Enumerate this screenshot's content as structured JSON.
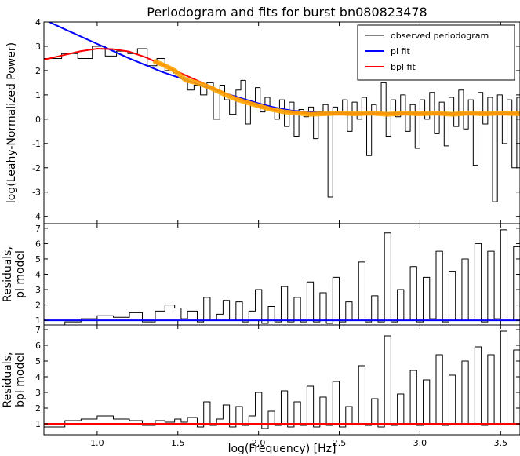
{
  "figure": {
    "title": "Periodogram and fits for burst bn080823478"
  },
  "chart_data": [
    {
      "type": "line",
      "panel": "periodogram",
      "title": "Periodogram and fits for burst bn080823478",
      "ylabel": "log(Leahy-Normalized Power)",
      "xlim": [
        0.67,
        3.62
      ],
      "ylim": [
        -4.3,
        4
      ],
      "yticks": [
        -4,
        -3,
        -2,
        -1,
        0,
        1,
        2,
        3,
        4
      ],
      "legend_position": "top-right",
      "legend": [
        {
          "label": "observed periodogram",
          "color": "#000000"
        },
        {
          "label": "pl fit",
          "color": "#0000ff"
        },
        {
          "label": "bpl fit",
          "color": "#ff0000"
        }
      ],
      "series": [
        {
          "name": "observed periodogram",
          "color": "#000000",
          "style": "steps",
          "x": [
            0.67,
            0.78,
            0.88,
            0.97,
            1.05,
            1.12,
            1.19,
            1.25,
            1.31,
            1.37,
            1.42,
            1.47,
            1.52,
            1.56,
            1.6,
            1.64,
            1.68,
            1.72,
            1.76,
            1.79,
            1.82,
            1.86,
            1.89,
            1.92,
            1.95,
            1.98,
            2.01,
            2.04,
            2.07,
            2.1,
            2.13,
            2.16,
            2.19,
            2.22,
            2.25,
            2.28,
            2.31,
            2.34,
            2.37,
            2.4,
            2.43,
            2.46,
            2.49,
            2.52,
            2.55,
            2.58,
            2.61,
            2.64,
            2.67,
            2.7,
            2.73,
            2.76,
            2.79,
            2.82,
            2.85,
            2.88,
            2.91,
            2.94,
            2.97,
            3.0,
            3.03,
            3.06,
            3.09,
            3.12,
            3.15,
            3.18,
            3.21,
            3.24,
            3.27,
            3.3,
            3.33,
            3.36,
            3.39,
            3.42,
            3.45,
            3.48,
            3.51,
            3.54,
            3.57,
            3.6,
            3.62
          ],
          "y": [
            2.5,
            2.7,
            2.5,
            3.0,
            2.6,
            2.8,
            2.7,
            2.9,
            2.2,
            2.5,
            2.0,
            1.9,
            1.7,
            1.2,
            1.4,
            1.0,
            1.5,
            0.0,
            1.4,
            0.8,
            0.2,
            1.2,
            1.6,
            -0.2,
            0.7,
            1.3,
            0.3,
            0.9,
            0.5,
            0.0,
            0.8,
            -0.3,
            0.7,
            -0.7,
            0.4,
            0.1,
            0.5,
            -0.8,
            0.3,
            0.6,
            -3.2,
            0.5,
            0.2,
            0.8,
            -0.5,
            0.7,
            0.0,
            0.9,
            -1.5,
            0.6,
            0.2,
            1.5,
            -0.7,
            0.8,
            0.1,
            1.0,
            -0.5,
            0.6,
            -1.2,
            0.8,
            0.0,
            1.1,
            -0.6,
            0.7,
            -1.1,
            0.9,
            -0.3,
            1.2,
            -0.4,
            0.8,
            -1.9,
            1.1,
            -0.2,
            0.9,
            -3.4,
            1.0,
            -1.0,
            0.8,
            -2.0,
            0.9,
            0.4
          ]
        },
        {
          "name": "pl fit",
          "color": "#0000ff",
          "x": [
            0.67,
            0.8,
            1.0,
            1.2,
            1.4,
            1.6,
            1.8,
            1.9,
            2.0,
            2.1,
            2.2,
            2.3,
            2.4,
            2.6,
            2.8,
            3.0,
            3.2,
            3.4,
            3.62
          ],
          "y": [
            4.1,
            3.7,
            3.1,
            2.5,
            1.95,
            1.5,
            1.05,
            0.85,
            0.65,
            0.48,
            0.36,
            0.3,
            0.27,
            0.25,
            0.25,
            0.25,
            0.25,
            0.25,
            0.25
          ]
        },
        {
          "name": "bpl fit",
          "color": "#ff0000",
          "x": [
            0.67,
            0.8,
            0.9,
            1.0,
            1.1,
            1.2,
            1.3,
            1.4,
            1.5,
            1.6,
            1.7,
            1.8,
            1.9,
            2.0,
            2.1,
            2.2,
            2.3,
            2.4,
            2.6,
            2.8,
            3.0,
            3.2,
            3.4,
            3.62
          ],
          "y": [
            2.45,
            2.65,
            2.8,
            2.9,
            2.88,
            2.78,
            2.55,
            2.25,
            1.95,
            1.65,
            1.35,
            1.05,
            0.78,
            0.55,
            0.38,
            0.28,
            0.24,
            0.22,
            0.22,
            0.22,
            0.22,
            0.22,
            0.22,
            0.22
          ]
        },
        {
          "name": "",
          "color": "#ffa500",
          "style": "band",
          "x": [
            1.35,
            1.42,
            1.48,
            1.55,
            1.62,
            1.7,
            1.78,
            1.85,
            1.92,
            2.0,
            2.08,
            2.16,
            2.24,
            2.32,
            2.4,
            2.5,
            2.6,
            2.7,
            2.8,
            2.9,
            3.0,
            3.1,
            3.2,
            3.3,
            3.4,
            3.5,
            3.62
          ],
          "y": [
            2.4,
            2.2,
            2.0,
            1.6,
            1.5,
            1.3,
            1.05,
            0.85,
            0.7,
            0.55,
            0.4,
            0.3,
            0.25,
            0.2,
            0.22,
            0.25,
            0.22,
            0.25,
            0.2,
            0.25,
            0.22,
            0.25,
            0.2,
            0.25,
            0.22,
            0.25,
            0.22
          ]
        }
      ]
    },
    {
      "type": "line",
      "panel": "residuals-pl",
      "ylabel": "Residuals,\npl model",
      "xlim": [
        0.67,
        3.62
      ],
      "ylim": [
        0.7,
        7.3
      ],
      "yticks": [
        1,
        2,
        3,
        4,
        5,
        6,
        7
      ],
      "series": [
        {
          "name": "",
          "color": "#000000",
          "style": "steps",
          "x": [
            0.67,
            0.8,
            0.9,
            1.0,
            1.1,
            1.2,
            1.28,
            1.36,
            1.42,
            1.48,
            1.52,
            1.56,
            1.62,
            1.66,
            1.7,
            1.74,
            1.78,
            1.82,
            1.86,
            1.9,
            1.94,
            1.98,
            2.02,
            2.06,
            2.1,
            2.14,
            2.18,
            2.22,
            2.26,
            2.3,
            2.34,
            2.38,
            2.42,
            2.46,
            2.5,
            2.54,
            2.58,
            2.62,
            2.66,
            2.7,
            2.74,
            2.78,
            2.82,
            2.86,
            2.9,
            2.94,
            2.98,
            3.02,
            3.06,
            3.1,
            3.14,
            3.18,
            3.22,
            3.26,
            3.3,
            3.34,
            3.38,
            3.42,
            3.46,
            3.5,
            3.54,
            3.58,
            3.62
          ],
          "y": [
            0.7,
            0.9,
            1.1,
            1.3,
            1.2,
            1.5,
            0.9,
            1.6,
            2.0,
            1.8,
            1.1,
            1.6,
            0.9,
            2.5,
            1.0,
            1.4,
            2.3,
            1.0,
            2.2,
            0.9,
            1.6,
            3.0,
            0.8,
            1.9,
            0.9,
            3.2,
            0.9,
            2.5,
            0.9,
            3.5,
            0.9,
            2.8,
            0.8,
            3.8,
            0.9,
            2.2,
            1.0,
            4.8,
            0.9,
            2.6,
            0.9,
            6.7,
            0.9,
            3.0,
            1.0,
            4.5,
            0.9,
            3.8,
            1.1,
            5.5,
            0.9,
            4.2,
            1.0,
            5.0,
            1.0,
            6.0,
            0.9,
            5.5,
            1.1,
            6.9,
            1.0,
            5.8,
            2.0
          ]
        },
        {
          "name": "",
          "color": "#0000ff",
          "x": [
            0.67,
            3.62
          ],
          "y": [
            1.0,
            1.0
          ]
        }
      ]
    },
    {
      "type": "line",
      "panel": "residuals-bpl",
      "ylabel": "Residuals,\nbpl model",
      "xlabel": "log(Frequency) [Hz]",
      "xlim": [
        0.67,
        3.62
      ],
      "ylim": [
        0.3,
        7.3
      ],
      "yticks": [
        1,
        2,
        3,
        4,
        5,
        6,
        7
      ],
      "xticks": [
        1.0,
        1.5,
        2.0,
        2.5,
        3.0,
        3.5
      ],
      "xticklabels": [
        "1.0",
        "1.5",
        "2.0",
        "2.5",
        "3.0",
        "3.5"
      ],
      "series": [
        {
          "name": "",
          "color": "#000000",
          "style": "steps",
          "x": [
            0.67,
            0.8,
            0.9,
            1.0,
            1.1,
            1.2,
            1.28,
            1.36,
            1.42,
            1.48,
            1.52,
            1.56,
            1.62,
            1.66,
            1.7,
            1.74,
            1.78,
            1.82,
            1.86,
            1.9,
            1.94,
            1.98,
            2.02,
            2.06,
            2.1,
            2.14,
            2.18,
            2.22,
            2.26,
            2.3,
            2.34,
            2.38,
            2.42,
            2.46,
            2.5,
            2.54,
            2.58,
            2.62,
            2.66,
            2.7,
            2.74,
            2.78,
            2.82,
            2.86,
            2.9,
            2.94,
            2.98,
            3.02,
            3.06,
            3.1,
            3.14,
            3.18,
            3.22,
            3.26,
            3.3,
            3.34,
            3.38,
            3.42,
            3.46,
            3.5,
            3.54,
            3.58,
            3.62
          ],
          "y": [
            0.8,
            1.2,
            1.3,
            1.5,
            1.3,
            1.2,
            0.9,
            1.2,
            1.1,
            1.3,
            1.1,
            1.4,
            0.8,
            2.4,
            0.9,
            1.3,
            2.2,
            0.8,
            2.1,
            0.9,
            1.5,
            3.0,
            0.7,
            1.8,
            0.9,
            3.1,
            0.8,
            2.4,
            0.9,
            3.4,
            0.8,
            2.7,
            0.9,
            3.7,
            0.8,
            2.1,
            1.0,
            4.7,
            0.9,
            2.6,
            0.8,
            6.6,
            0.9,
            2.9,
            1.0,
            4.4,
            0.9,
            3.8,
            1.0,
            5.4,
            0.9,
            4.1,
            1.0,
            5.0,
            1.0,
            5.9,
            0.9,
            5.4,
            1.0,
            6.9,
            1.0,
            5.7,
            2.0
          ]
        },
        {
          "name": "",
          "color": "#ff0000",
          "x": [
            0.67,
            3.62
          ],
          "y": [
            1.0,
            1.0
          ]
        }
      ]
    }
  ]
}
